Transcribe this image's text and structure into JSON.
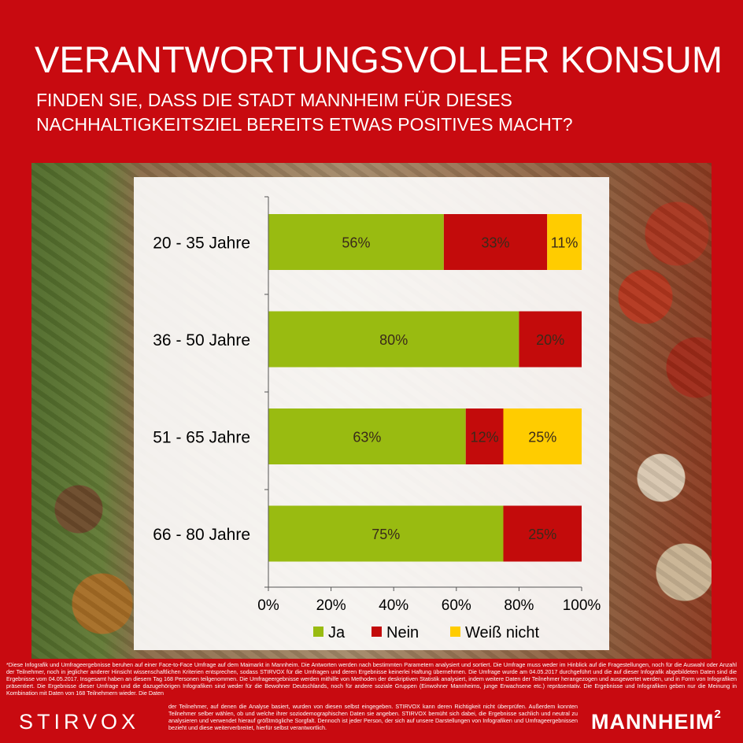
{
  "header": {
    "title": "VERANTWORTUNGSVOLLER KONSUM",
    "subtitle": "FINDEN SIE, DASS DIE STADT MANNHEIM FÜR DIESES\nNACHHALTIGKEITSZIEL BEREITS ETWAS POSITIVES MACHT?"
  },
  "chart_data": {
    "type": "bar",
    "orientation": "horizontal",
    "stacked": true,
    "percent_stacked": true,
    "categories": [
      "20 - 35 Jahre",
      "36 - 50 Jahre",
      "51 - 65 Jahre",
      "66 - 80 Jahre"
    ],
    "series": [
      {
        "name": "Ja",
        "color": "#99bb11",
        "values": [
          56,
          80,
          63,
          75
        ],
        "labels": [
          "56%",
          "80%",
          "63%",
          "75%"
        ]
      },
      {
        "name": "Nein",
        "color": "#c30b0b",
        "values": [
          33,
          20,
          12,
          25
        ],
        "labels": [
          "33%",
          "20%",
          "12%",
          "25%"
        ]
      },
      {
        "name": "Weiß nicht",
        "color": "#ffcc00",
        "values": [
          11,
          0,
          25,
          0
        ],
        "labels": [
          "11%",
          "",
          "25%",
          ""
        ]
      }
    ],
    "xlim": [
      0,
      100
    ],
    "xticks": [
      "0%",
      "20%",
      "40%",
      "60%",
      "80%",
      "100%"
    ],
    "grid": false,
    "legend": "bottom"
  },
  "footer": {
    "footnote": "*Diese Infografik und Umfrageergebnisse beruhen auf einer Face-to-Face Umfrage auf dem Maimarkt in Mannheim. Die Antworten werden nach bestimmten Parametern analysiert und sortiert. Die Umfrage muss weder im Hinblick auf die Fragestellungen, noch für die Auswahl oder Anzahl der Teilnehmer, noch in jeglicher anderer Hinsicht wissenschaftlichen Kriterien entsprechen, sodass STIRVOX für die Umfragen und deren Ergebnisse keinerlei Haftung übernehmen. Die Umfrage wurde am 04.05.2017 durchgeführt und die auf dieser Infografik abgebildeten Daten sind die Ergebnisse vom 04.05.2017. Insgesamt haben an diesem Tag 168 Personen teilgenommen. Die Umfrageergebnisse werden mithilfe von Methoden der deskriptiven Statistik analysiert, indem weitere Daten der Teilnehmer herangezogen und ausgewertet werden, und in Form von Infografiken präsentiert. Die Ergebnisse dieser Umfrage und die dazugehörigen Infografiken sind weder für die Bewohner Deutschlands, noch für andere soziale Gruppen (Einwohner Mannheims, junge Erwachsene etc.) repräsentativ. Die Ergebnisse und Infografiken geben nur die Meinung in Kombination mit Daten von 168 Teilnehmern wieder. Die Daten",
    "footnote_cont": "der Teilnehmer, auf denen die Analyse basiert, wurden von diesen selbst eingegeben. STIRVOX kann deren Richtigkeit nicht überprüfen. Außerdem konnten Teilnehmer selber wählen, ob und welche ihrer soziodemographischen Daten sie angeben. STIRVOX bemüht sich dabei, die Ergebnisse sachlich und neutral zu analysieren und verwendet hierauf größtmögliche Sorgfalt. Dennoch ist jeder Person, der sich auf unsere Darstellungen von Infografiken und Umfrageergebnissen bezieht und diese weiterverbreitet, hierfür selbst verantwortlich.",
    "logo_left": "STIRVOX",
    "logo_right": "MANNHEIM",
    "logo_right_sup": "2"
  }
}
